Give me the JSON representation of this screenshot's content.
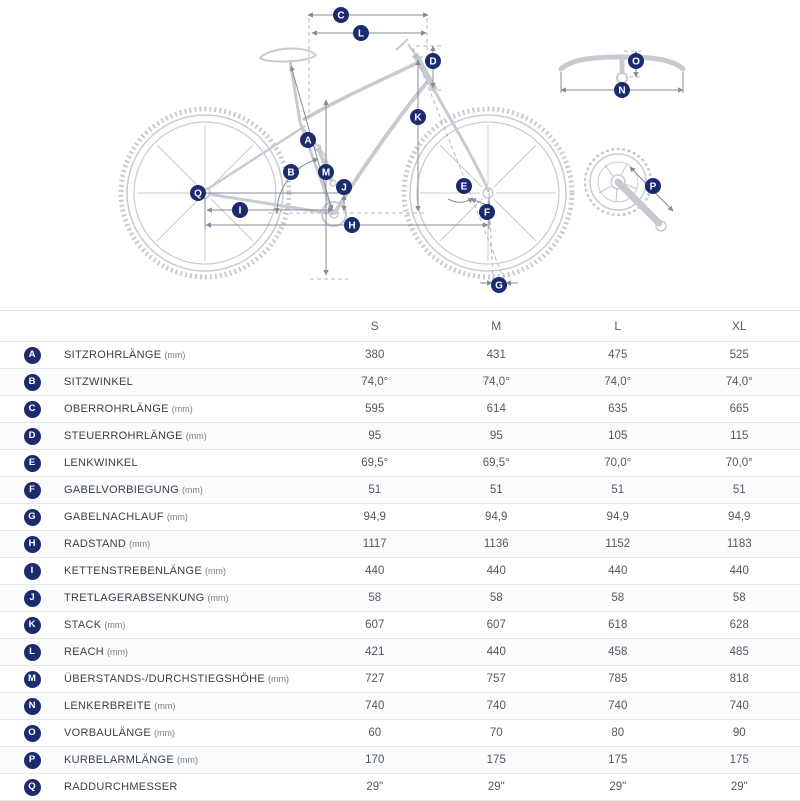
{
  "diagram": {
    "letters": [
      "A",
      "B",
      "C",
      "D",
      "E",
      "F",
      "G",
      "H",
      "I",
      "J",
      "K",
      "L",
      "M",
      "N",
      "O",
      "P",
      "Q"
    ]
  },
  "colors": {
    "badge": "#1c2a6e",
    "bike_line": "#c7cbd1",
    "dimension_line": "#858c96"
  },
  "table": {
    "size_headers": [
      "S",
      "M",
      "L",
      "XL"
    ],
    "rows": [
      {
        "letter": "A",
        "label": "SITZROHRLÄNGE",
        "unit": "(mm)",
        "values": [
          "380",
          "431",
          "475",
          "525"
        ]
      },
      {
        "letter": "B",
        "label": "SITZWINKEL",
        "unit": "",
        "values": [
          "74,0°",
          "74,0°",
          "74,0°",
          "74,0°"
        ]
      },
      {
        "letter": "C",
        "label": "OBERROHRLÄNGE",
        "unit": "(mm)",
        "values": [
          "595",
          "614",
          "635",
          "665"
        ]
      },
      {
        "letter": "D",
        "label": "STEUERROHRLÄNGE",
        "unit": "(mm)",
        "values": [
          "95",
          "95",
          "105",
          "115"
        ]
      },
      {
        "letter": "E",
        "label": "LENKWINKEL",
        "unit": "",
        "values": [
          "69,5°",
          "69,5°",
          "70,0°",
          "70,0°"
        ]
      },
      {
        "letter": "F",
        "label": "GABELVORBIEGUNG",
        "unit": "(mm)",
        "values": [
          "51",
          "51",
          "51",
          "51"
        ]
      },
      {
        "letter": "G",
        "label": "GABELNACHLAUF",
        "unit": "(mm)",
        "values": [
          "94,9",
          "94,9",
          "94,9",
          "94,9"
        ]
      },
      {
        "letter": "H",
        "label": "RADSTAND",
        "unit": "(mm)",
        "values": [
          "1117",
          "1136",
          "1152",
          "1183"
        ]
      },
      {
        "letter": "I",
        "label": "KETTENSTREBENLÄNGE",
        "unit": "(mm)",
        "values": [
          "440",
          "440",
          "440",
          "440"
        ]
      },
      {
        "letter": "J",
        "label": "TRETLAGERABSENKUNG",
        "unit": "(mm)",
        "values": [
          "58",
          "58",
          "58",
          "58"
        ]
      },
      {
        "letter": "K",
        "label": "STACK",
        "unit": "(mm)",
        "values": [
          "607",
          "607",
          "618",
          "628"
        ]
      },
      {
        "letter": "L",
        "label": "REACH",
        "unit": "(mm)",
        "values": [
          "421",
          "440",
          "458",
          "485"
        ]
      },
      {
        "letter": "M",
        "label": "ÜBERSTANDS-/DURCHSTIEGSHÖHE",
        "unit": "(mm)",
        "values": [
          "727",
          "757",
          "785",
          "818"
        ]
      },
      {
        "letter": "N",
        "label": "LENKERBREITE",
        "unit": "(mm)",
        "values": [
          "740",
          "740",
          "740",
          "740"
        ]
      },
      {
        "letter": "O",
        "label": "VORBAULÄNGE",
        "unit": "(mm)",
        "values": [
          "60",
          "70",
          "80",
          "90"
        ]
      },
      {
        "letter": "P",
        "label": "KURBELARMLÄNGE",
        "unit": "(mm)",
        "values": [
          "170",
          "175",
          "175",
          "175"
        ]
      },
      {
        "letter": "Q",
        "label": "RADDURCHMESSER",
        "unit": "",
        "values": [
          "29\"",
          "29\"",
          "29\"",
          "29\""
        ]
      }
    ]
  }
}
